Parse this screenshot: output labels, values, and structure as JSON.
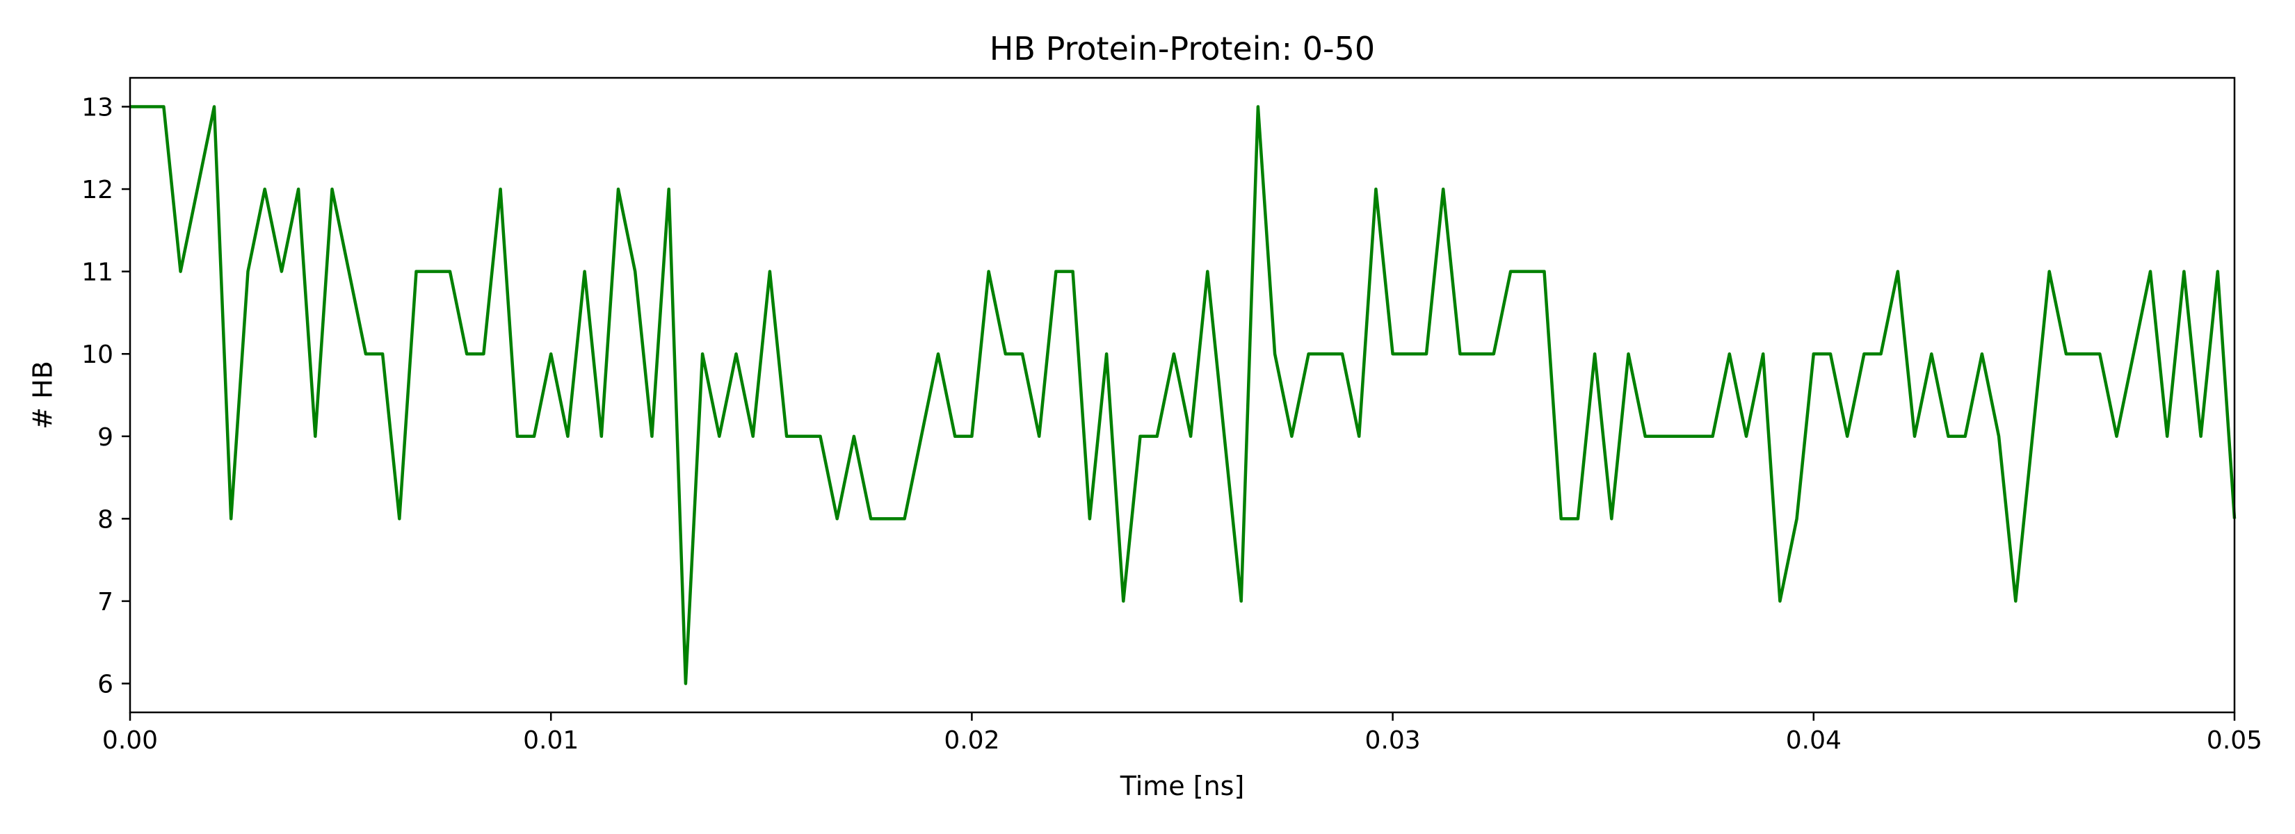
{
  "chart_data": {
    "type": "line",
    "title": "HB Protein-Protein: 0-50",
    "xlabel": "Time [ns]",
    "ylabel": "# HB",
    "xlim": [
      0,
      0.05
    ],
    "ylim": [
      5.65,
      13.35
    ],
    "x_ticks": [
      0.0,
      0.01,
      0.02,
      0.03,
      0.04,
      0.05
    ],
    "x_tick_labels": [
      "0.00",
      "0.01",
      "0.02",
      "0.03",
      "0.04",
      "0.05"
    ],
    "y_ticks": [
      6,
      7,
      8,
      9,
      10,
      11,
      12,
      13
    ],
    "y_tick_labels": [
      "6",
      "7",
      "8",
      "9",
      "10",
      "11",
      "12",
      "13"
    ],
    "grid": false,
    "series": [
      {
        "color": "#008000",
        "x": [
          0.0,
          0.0004,
          0.0008,
          0.0012,
          0.0016,
          0.002,
          0.0024,
          0.0028,
          0.0032,
          0.0036,
          0.004,
          0.0044,
          0.0048,
          0.0052,
          0.0056,
          0.006,
          0.0064,
          0.0068,
          0.0072,
          0.0076,
          0.008,
          0.0084,
          0.0088,
          0.0092,
          0.0096,
          0.01,
          0.0104,
          0.0108,
          0.0112,
          0.0116,
          0.012,
          0.0124,
          0.0128,
          0.0132,
          0.0136,
          0.014,
          0.0144,
          0.0148,
          0.0152,
          0.0156,
          0.016,
          0.0164,
          0.0168,
          0.0172,
          0.0176,
          0.018,
          0.0184,
          0.0188,
          0.0192,
          0.0196,
          0.02,
          0.0204,
          0.0208,
          0.0212,
          0.0216,
          0.022,
          0.0224,
          0.0228,
          0.0232,
          0.0236,
          0.024,
          0.0244,
          0.0248,
          0.0252,
          0.0256,
          0.026,
          0.0264,
          0.0268,
          0.0272,
          0.0276,
          0.028,
          0.0284,
          0.0288,
          0.0292,
          0.0296,
          0.03,
          0.0304,
          0.0308,
          0.0312,
          0.0316,
          0.032,
          0.0324,
          0.0328,
          0.0332,
          0.0336,
          0.034,
          0.0344,
          0.0348,
          0.0352,
          0.0356,
          0.036,
          0.0364,
          0.0368,
          0.0372,
          0.0376,
          0.038,
          0.0384,
          0.0388,
          0.0392,
          0.0396,
          0.04,
          0.0404,
          0.0408,
          0.0412,
          0.0416,
          0.042,
          0.0424,
          0.0428,
          0.0432,
          0.0436,
          0.044,
          0.0444,
          0.0448,
          0.0452,
          0.0456,
          0.046,
          0.0464,
          0.0468,
          0.0472,
          0.0476,
          0.048,
          0.0484,
          0.0488,
          0.0492,
          0.0496,
          0.05
        ],
        "y": [
          13,
          13,
          13,
          11,
          12,
          13,
          8,
          11,
          12,
          11,
          12,
          9,
          12,
          11,
          10,
          10,
          8,
          11,
          11,
          11,
          10,
          10,
          12,
          9,
          9,
          10,
          9,
          11,
          9,
          12,
          11,
          9,
          12,
          6,
          10,
          9,
          10,
          9,
          11,
          9,
          9,
          9,
          8,
          9,
          8,
          8,
          8,
          9,
          10,
          9,
          9,
          11,
          10,
          10,
          9,
          11,
          11,
          8,
          10,
          7,
          9,
          9,
          10,
          9,
          11,
          9,
          7,
          13,
          10,
          9,
          10,
          10,
          10,
          9,
          12,
          10,
          10,
          10,
          12,
          10,
          10,
          10,
          11,
          11,
          11,
          8,
          8,
          10,
          8,
          10,
          9,
          9,
          9,
          9,
          9,
          10,
          9,
          10,
          7,
          8,
          10,
          10,
          9,
          10,
          10,
          11,
          9,
          10,
          9,
          9,
          10,
          9,
          7,
          9,
          11,
          10,
          10,
          10,
          9,
          10,
          11,
          9,
          11,
          9,
          11,
          8
        ]
      }
    ]
  }
}
